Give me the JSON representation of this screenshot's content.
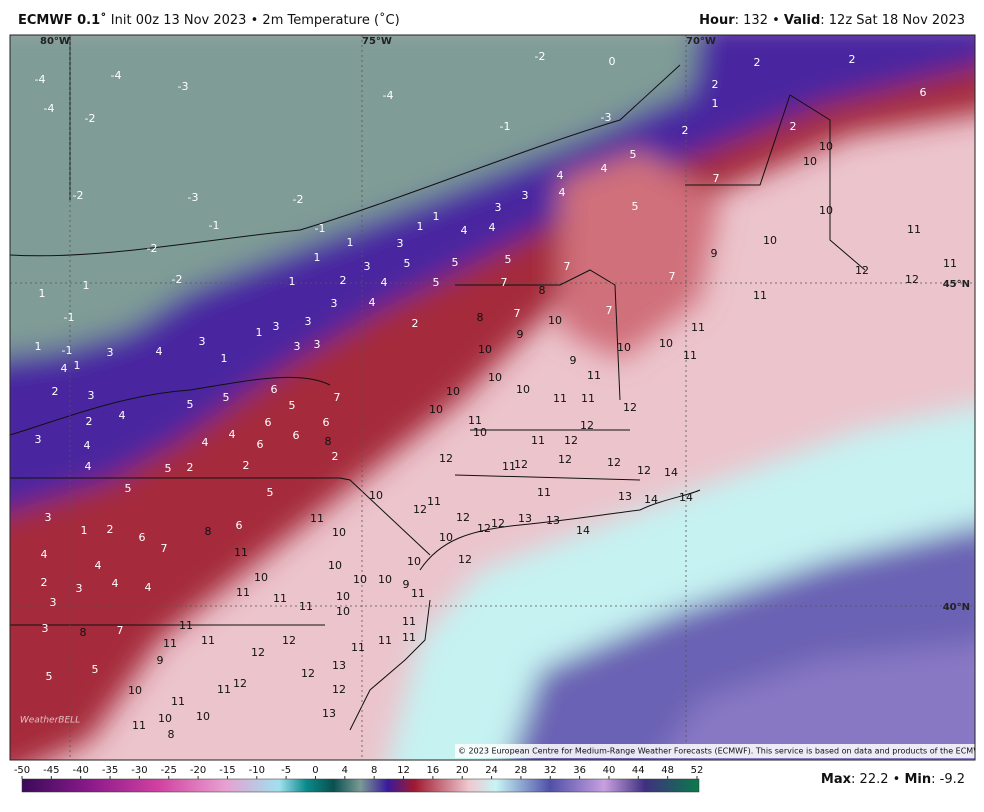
{
  "header": {
    "model": "ECMWF 0.1˚",
    "init": "Init 00z 13 Nov 2023",
    "sep": "•",
    "field": "2m Temperature (˚C)",
    "hour_label": "Hour",
    "hour": ": 132",
    "valid_label": "Valid",
    "valid": ": 12z Sat 18 Nov 2023"
  },
  "grid_labels": [
    "80°W",
    "75°W",
    "70°W",
    "45°N",
    "40°N"
  ],
  "map_labels": [
    -4,
    -4,
    -3,
    -4,
    -2,
    -4,
    -2,
    -3,
    -1,
    -3,
    -2,
    -2,
    -2,
    -1,
    -1,
    -2,
    0,
    2,
    2,
    2,
    6,
    1,
    2,
    2,
    10,
    10,
    5,
    4,
    4,
    4,
    5,
    7,
    10,
    11,
    10,
    9,
    7,
    5,
    5,
    5,
    3,
    3,
    4,
    4,
    1,
    1,
    3,
    3,
    2,
    1,
    1,
    1,
    4,
    5,
    7,
    8,
    7,
    11,
    12,
    12,
    11,
    7,
    10,
    7,
    8,
    11,
    9,
    10,
    9,
    10,
    10,
    11,
    11,
    10,
    10,
    10,
    10,
    11,
    11,
    12,
    11,
    10,
    11,
    12,
    12,
    12,
    12,
    12,
    14,
    12,
    11,
    12,
    11,
    13,
    14,
    14,
    12,
    12,
    12,
    13,
    13,
    14,
    12,
    12,
    11,
    10,
    11,
    10,
    10,
    10,
    10,
    10,
    10,
    9,
    10,
    11,
    11,
    11,
    11,
    10,
    11,
    10,
    11,
    11,
    11,
    11,
    13,
    12,
    12,
    13,
    12,
    12,
    12,
    11,
    11,
    11,
    11,
    9,
    10,
    11,
    10,
    10,
    11,
    8,
    5,
    5,
    3,
    8,
    7,
    4,
    4,
    4,
    3,
    2,
    4,
    3,
    1,
    3,
    2,
    5,
    6,
    7,
    8,
    6,
    5,
    2,
    2,
    5,
    4,
    4,
    5,
    5,
    6,
    5,
    6,
    6,
    6,
    6,
    8,
    7,
    2,
    4,
    4,
    3,
    2,
    4,
    3,
    2,
    4,
    1,
    -1,
    1,
    3,
    4,
    1,
    3,
    1,
    3,
    3,
    3,
    3,
    3,
    4,
    2,
    1,
    -1,
    1
  ],
  "copyright": "© 2023 European Centre for Medium-Range Weather Forecasts (ECMWF). This service is based on data and products of the ECMWF.",
  "logo": "WeatherBELL",
  "colorbar_ticks": [
    -50,
    -45,
    -40,
    -35,
    -30,
    -25,
    -20,
    -15,
    -10,
    -5,
    0,
    4,
    8,
    12,
    16,
    20,
    24,
    28,
    32,
    36,
    40,
    44,
    48,
    52
  ],
  "stats": {
    "max_label": "Max",
    "max": ": 22.2",
    "sep": "•",
    "min_label": "Min",
    "min": ": -9.2"
  }
}
